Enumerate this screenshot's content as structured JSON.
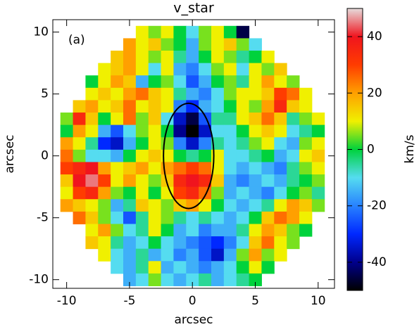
{
  "chart_data": {
    "type": "heatmap",
    "title": "v_star",
    "annotation": "(a)",
    "x_label": "arcsec",
    "y_label": "arcsec",
    "colorbar_label": "km/s",
    "xlim": [
      -11.1,
      11.3
    ],
    "ylim": [
      -10.7,
      11.0
    ],
    "xticks": [
      -10,
      -5,
      0,
      5,
      10
    ],
    "yticks": [
      -10,
      -5,
      0,
      5,
      10
    ],
    "clim": [
      -50,
      50
    ],
    "cticks": [
      -40,
      -20,
      0,
      20,
      40
    ],
    "colorscale": [
      "#000000",
      "#00008c",
      "#0028ff",
      "#2882ff",
      "#55dcf0",
      "#00d23c",
      "#f0f000",
      "#ffa000",
      "#ff3c00",
      "#f0141e",
      "#e6dcdc"
    ],
    "ellipse": {
      "cx": -0.3,
      "cy": 0,
      "rx": 2.0,
      "ry": 4.25
    },
    "x": [
      -10,
      -9,
      -8,
      -7,
      -6,
      -5,
      -4,
      -3,
      -2,
      -1,
      0,
      1,
      2,
      3,
      4,
      5,
      6,
      7,
      8,
      9,
      10
    ],
    "y": [
      10,
      9,
      8,
      7,
      6,
      5,
      4,
      3,
      2,
      1,
      0,
      -1,
      -2,
      -3,
      -4,
      -5,
      -6,
      -7,
      -8,
      -9,
      -10
    ],
    "values": [
      [
        null,
        null,
        null,
        null,
        null,
        null,
        10,
        5,
        10,
        0,
        -10,
        5,
        10,
        0,
        -45,
        null,
        null,
        null,
        null,
        null,
        null
      ],
      [
        null,
        null,
        null,
        null,
        null,
        20,
        10,
        15,
        5,
        0,
        -15,
        5,
        10,
        15,
        5,
        -10,
        null,
        null,
        null,
        null,
        null
      ],
      [
        null,
        null,
        null,
        null,
        15,
        20,
        10,
        5,
        10,
        -5,
        -15,
        0,
        10,
        5,
        -5,
        0,
        10,
        null,
        null,
        null,
        null
      ],
      [
        null,
        null,
        null,
        10,
        15,
        20,
        10,
        -10,
        10,
        -15,
        -20,
        -10,
        5,
        10,
        -10,
        10,
        5,
        15,
        null,
        null,
        null
      ],
      [
        null,
        null,
        0,
        10,
        20,
        15,
        -15,
        0,
        5,
        -10,
        -25,
        -15,
        0,
        5,
        -5,
        10,
        20,
        10,
        5,
        null,
        null
      ],
      [
        null,
        null,
        10,
        15,
        10,
        20,
        25,
        15,
        10,
        -5,
        -15,
        -20,
        -10,
        5,
        10,
        10,
        15,
        30,
        25,
        10,
        null
      ],
      [
        null,
        15,
        20,
        10,
        15,
        25,
        10,
        15,
        10,
        -20,
        -30,
        -15,
        -10,
        0,
        10,
        5,
        20,
        35,
        15,
        10,
        null
      ],
      [
        5,
        35,
        15,
        0,
        10,
        25,
        5,
        15,
        -10,
        -35,
        -45,
        -25,
        -5,
        -5,
        10,
        15,
        25,
        15,
        -5,
        5,
        10
      ],
      [
        0,
        20,
        10,
        -15,
        -25,
        -10,
        5,
        10,
        0,
        -40,
        -50,
        -35,
        -10,
        -10,
        0,
        10,
        15,
        10,
        -10,
        -5,
        0
      ],
      [
        20,
        10,
        -5,
        -30,
        -35,
        -15,
        0,
        10,
        5,
        -20,
        -35,
        -20,
        -5,
        -10,
        -5,
        5,
        10,
        -10,
        -15,
        5,
        10
      ],
      [
        25,
        5,
        -10,
        -10,
        -15,
        0,
        10,
        15,
        10,
        0,
        -5,
        0,
        10,
        -10,
        -10,
        -5,
        0,
        -15,
        -10,
        10,
        15
      ],
      [
        30,
        35,
        40,
        20,
        10,
        15,
        20,
        10,
        20,
        25,
        30,
        25,
        10,
        -10,
        -15,
        -10,
        -15,
        -20,
        -5,
        5,
        10
      ],
      [
        15,
        40,
        45,
        30,
        10,
        20,
        10,
        5,
        15,
        35,
        40,
        35,
        15,
        -15,
        -20,
        -15,
        -10,
        -15,
        -5,
        0,
        5
      ],
      [
        10,
        30,
        35,
        20,
        5,
        0,
        10,
        0,
        10,
        30,
        35,
        25,
        5,
        -15,
        -10,
        -15,
        -20,
        -10,
        0,
        5,
        -5
      ],
      [
        20,
        15,
        10,
        5,
        -15,
        -5,
        15,
        10,
        5,
        15,
        20,
        10,
        0,
        -10,
        -15,
        -10,
        -5,
        10,
        20,
        15,
        5
      ],
      [
        null,
        25,
        15,
        5,
        -10,
        -25,
        -5,
        10,
        5,
        -5,
        -10,
        -5,
        -10,
        -15,
        -10,
        0,
        15,
        25,
        20,
        10,
        null
      ],
      [
        null,
        null,
        10,
        20,
        5,
        -10,
        -5,
        10,
        0,
        -15,
        -10,
        -20,
        -15,
        -15,
        -5,
        10,
        20,
        15,
        5,
        0,
        null
      ],
      [
        null,
        null,
        15,
        10,
        -5,
        -15,
        -10,
        0,
        -10,
        -15,
        -20,
        -25,
        -30,
        -20,
        -10,
        15,
        25,
        10,
        5,
        null,
        null
      ],
      [
        null,
        null,
        null,
        10,
        -10,
        -15,
        -5,
        -15,
        -10,
        -20,
        -15,
        -25,
        -35,
        -15,
        5,
        20,
        5,
        10,
        null,
        null,
        null
      ],
      [
        null,
        null,
        null,
        null,
        -10,
        -15,
        -5,
        10,
        -15,
        -10,
        -15,
        -20,
        -15,
        -10,
        0,
        10,
        0,
        null,
        null,
        null,
        null
      ],
      [
        null,
        null,
        null,
        null,
        null,
        -15,
        -10,
        5,
        -10,
        -15,
        -10,
        -5,
        -15,
        -10,
        -5,
        0,
        null,
        null,
        null,
        null,
        null
      ]
    ]
  }
}
